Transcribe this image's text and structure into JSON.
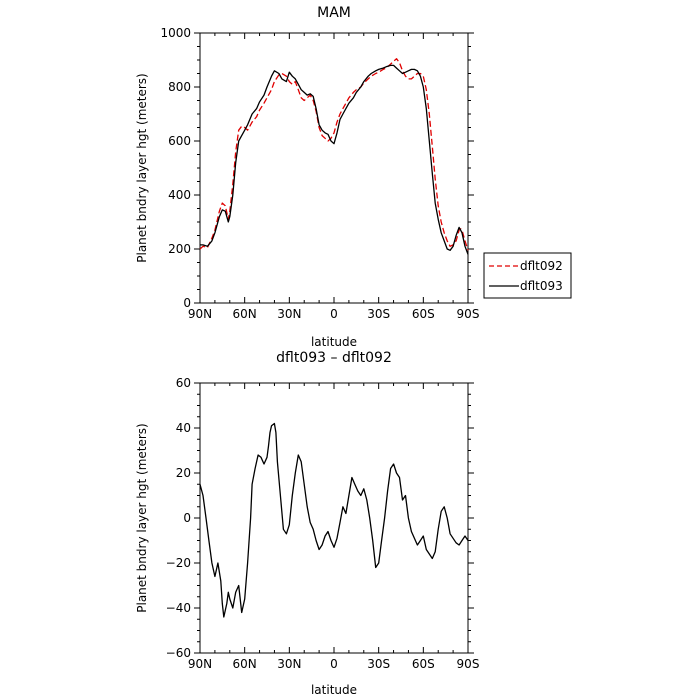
{
  "chart_data": [
    {
      "type": "line",
      "title": "MAM",
      "xlabel": "latitude",
      "ylabel": "Planet bndry layer hgt (meters)",
      "xlim": [
        90,
        -90
      ],
      "ylim": [
        0,
        1000
      ],
      "x_ticks": [
        {
          "value": 90,
          "label": "90N"
        },
        {
          "value": 60,
          "label": "60N"
        },
        {
          "value": 30,
          "label": "30N"
        },
        {
          "value": 0,
          "label": "0"
        },
        {
          "value": -30,
          "label": "30S"
        },
        {
          "value": -60,
          "label": "60S"
        },
        {
          "value": -90,
          "label": "90S"
        }
      ],
      "y_ticks": [
        0,
        200,
        400,
        600,
        800,
        1000
      ],
      "grid": false,
      "legend_position": "outside-right",
      "series": [
        {
          "name": "dflt092",
          "color": "#e00000",
          "dash": "dashed",
          "x": [
            90,
            88,
            85,
            82,
            80,
            77,
            75,
            73,
            71,
            70,
            68,
            66,
            64,
            62,
            60,
            58,
            55,
            52,
            50,
            47,
            45,
            42,
            40,
            37,
            35,
            32,
            30,
            28,
            26,
            24,
            22,
            20,
            18,
            16,
            14,
            12,
            10,
            8,
            6,
            4,
            2,
            0,
            -2,
            -4,
            -6,
            -8,
            -10,
            -13,
            -15,
            -18,
            -20,
            -23,
            -25,
            -28,
            -30,
            -33,
            -35,
            -38,
            -40,
            -42,
            -44,
            -46,
            -48,
            -50,
            -52,
            -54,
            -56,
            -58,
            -60,
            -62,
            -64,
            -66,
            -68,
            -70,
            -72,
            -74,
            -76,
            -78,
            -80,
            -82,
            -84,
            -85,
            -86,
            -88,
            -90
          ],
          "y": [
            200,
            210,
            205,
            240,
            270,
            340,
            370,
            360,
            310,
            340,
            440,
            560,
            640,
            655,
            650,
            640,
            670,
            690,
            715,
            740,
            760,
            790,
            820,
            845,
            850,
            840,
            820,
            810,
            820,
            790,
            760,
            750,
            760,
            770,
            750,
            710,
            650,
            620,
            610,
            600,
            610,
            630,
            670,
            700,
            720,
            740,
            760,
            780,
            790,
            800,
            815,
            830,
            840,
            850,
            855,
            865,
            870,
            885,
            895,
            905,
            890,
            860,
            840,
            830,
            830,
            840,
            850,
            850,
            840,
            790,
            700,
            580,
            460,
            360,
            300,
            260,
            230,
            210,
            215,
            230,
            270,
            275,
            270,
            230,
            195
          ]
        },
        {
          "name": "dflt093",
          "color": "#000000",
          "dash": "solid",
          "x": [
            90,
            88,
            85,
            82,
            80,
            77,
            75,
            73,
            71,
            70,
            68,
            66,
            64,
            62,
            60,
            58,
            55,
            52,
            50,
            47,
            45,
            42,
            40,
            37,
            35,
            32,
            30,
            28,
            26,
            24,
            22,
            20,
            18,
            16,
            14,
            12,
            10,
            8,
            6,
            4,
            2,
            0,
            -2,
            -4,
            -6,
            -8,
            -10,
            -13,
            -15,
            -18,
            -20,
            -23,
            -25,
            -28,
            -30,
            -33,
            -35,
            -38,
            -40,
            -42,
            -44,
            -46,
            -48,
            -50,
            -52,
            -54,
            -56,
            -58,
            -60,
            -62,
            -64,
            -66,
            -68,
            -70,
            -72,
            -74,
            -76,
            -78,
            -80,
            -82,
            -84,
            -85,
            -86,
            -88,
            -90
          ],
          "y": [
            215,
            215,
            210,
            230,
            260,
            320,
            345,
            340,
            300,
            320,
            400,
            520,
            600,
            620,
            640,
            660,
            700,
            720,
            745,
            770,
            800,
            840,
            860,
            850,
            830,
            820,
            855,
            840,
            830,
            810,
            790,
            780,
            770,
            775,
            765,
            720,
            660,
            640,
            630,
            625,
            600,
            590,
            630,
            680,
            700,
            720,
            740,
            760,
            780,
            800,
            820,
            840,
            850,
            860,
            865,
            870,
            875,
            880,
            880,
            870,
            860,
            850,
            855,
            860,
            865,
            865,
            860,
            840,
            800,
            720,
            600,
            480,
            370,
            310,
            260,
            230,
            200,
            195,
            210,
            250,
            280,
            270,
            260,
            210,
            180
          ]
        }
      ]
    },
    {
      "type": "line",
      "title": "dflt093 – dflt092",
      "xlabel": "latitude",
      "ylabel": "Planet bndry layer hgt (meters)",
      "xlim": [
        90,
        -90
      ],
      "ylim": [
        -60,
        60
      ],
      "x_ticks": [
        {
          "value": 90,
          "label": "90N"
        },
        {
          "value": 60,
          "label": "60N"
        },
        {
          "value": 30,
          "label": "30N"
        },
        {
          "value": 0,
          "label": "0"
        },
        {
          "value": -30,
          "label": "30S"
        },
        {
          "value": -60,
          "label": "60S"
        },
        {
          "value": -90,
          "label": "90S"
        }
      ],
      "y_ticks": [
        -60,
        -40,
        -20,
        0,
        20,
        40,
        60
      ],
      "grid": false,
      "series": [
        {
          "color": "#000000",
          "dash": "solid",
          "x": [
            90,
            88,
            86,
            84,
            82,
            80,
            78,
            76,
            75,
            74,
            72,
            71,
            70,
            68,
            66,
            64,
            62,
            60,
            58,
            56,
            55,
            53,
            51,
            49,
            47,
            45,
            44,
            43,
            42,
            40,
            39,
            38,
            36,
            34,
            32,
            30,
            28,
            26,
            24,
            22,
            20,
            18,
            16,
            14,
            12,
            10,
            8,
            6,
            4,
            2,
            0,
            -2,
            -4,
            -6,
            -8,
            -10,
            -12,
            -14,
            -16,
            -18,
            -20,
            -22,
            -24,
            -26,
            -28,
            -30,
            -32,
            -34,
            -36,
            -38,
            -40,
            -42,
            -44,
            -46,
            -48,
            -50,
            -52,
            -54,
            -56,
            -58,
            -60,
            -62,
            -64,
            -66,
            -68,
            -70,
            -72,
            -74,
            -76,
            -78,
            -80,
            -82,
            -84,
            -86,
            -88,
            -90
          ],
          "y": [
            15,
            10,
            0,
            -10,
            -20,
            -26,
            -20,
            -28,
            -38,
            -44,
            -38,
            -33,
            -36,
            -40,
            -33,
            -30,
            -42,
            -36,
            -20,
            0,
            15,
            22,
            28,
            27,
            24,
            27,
            32,
            38,
            41,
            42,
            38,
            25,
            10,
            -5,
            -7,
            -3,
            10,
            20,
            28,
            25,
            15,
            5,
            -2,
            -5,
            -10,
            -14,
            -12,
            -8,
            -6,
            -10,
            -13,
            -9,
            -2,
            5,
            2,
            10,
            18,
            15,
            12,
            10,
            13,
            8,
            0,
            -10,
            -22,
            -20,
            -10,
            0,
            12,
            22,
            24,
            20,
            18,
            8,
            10,
            0,
            -6,
            -9,
            -12,
            -10,
            -8,
            -14,
            -16,
            -18,
            -15,
            -5,
            3,
            5,
            0,
            -7,
            -9,
            -11,
            -12,
            -10,
            -8,
            -10
          ]
        }
      ]
    }
  ]
}
